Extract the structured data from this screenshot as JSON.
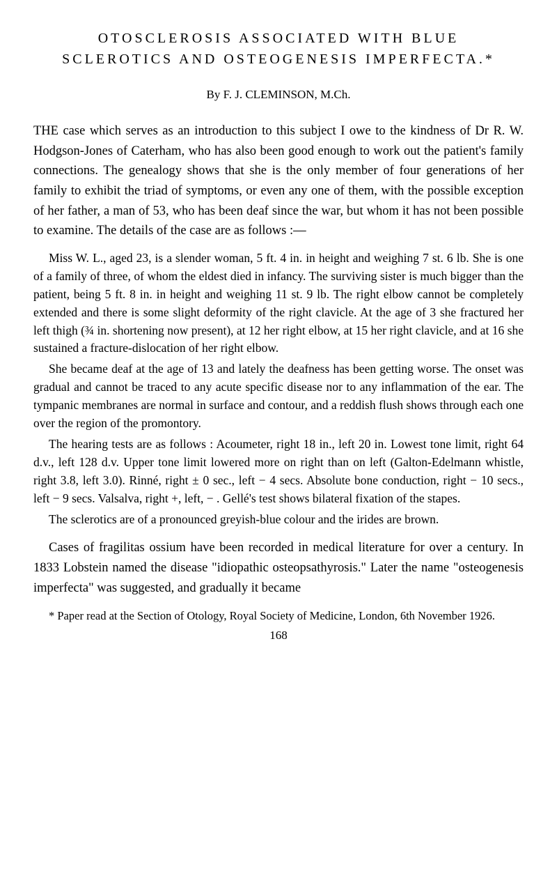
{
  "title_line1": "OTOSCLEROSIS ASSOCIATED WITH BLUE",
  "title_line2": "SCLEROTICS AND OSTEOGENESIS IMPERFECTA.*",
  "byline": "By F. J. CLEMINSON, M.Ch.",
  "intro": "THE case which serves as an introduction to this subject I owe to the kindness of Dr R. W. Hodgson-Jones of Caterham, who has also been good enough to work out the patient's family connections. The genealogy shows that she is the only member of four generations of her family to exhibit the triad of symptoms, or even any one of them, with the possible exception of her father, a man of 53, who has been deaf since the war, but whom it has not been possible to examine. The details of the case are as follows :—",
  "case": [
    "Miss W. L., aged 23, is a slender woman, 5 ft. 4 in. in height and weighing 7 st. 6 lb. She is one of a family of three, of whom the eldest died in infancy. The surviving sister is much bigger than the patient, being 5 ft. 8 in. in height and weighing 11 st. 9 lb. The right elbow cannot be completely extended and there is some slight deformity of the right clavicle. At the age of 3 she fractured her left thigh (¾ in. shortening now present), at 12 her right elbow, at 15 her right clavicle, and at 16 she sustained a fracture-dislocation of her right elbow.",
    "She became deaf at the age of 13 and lately the deafness has been getting worse. The onset was gradual and cannot be traced to any acute specific disease nor to any inflammation of the ear. The tympanic membranes are normal in surface and contour, and a reddish flush shows through each one over the region of the promontory.",
    "The hearing tests are as follows : Acoumeter, right 18 in., left 20 in. Lowest tone limit, right 64 d.v., left 128 d.v. Upper tone limit lowered more on right than on left (Galton-Edelmann whistle, right 3.8, left 3.0). Rinné, right ± 0 sec., left − 4 secs. Absolute bone conduction, right − 10 secs., left − 9 secs. Valsalva, right +, left, − . Gellé's test shows bilateral fixation of the stapes.",
    "The sclerotics are of a pronounced greyish-blue colour and the irides are brown."
  ],
  "closing": "Cases of fragilitas ossium have been recorded in medical literature for over a century. In 1833 Lobstein named the disease \"idiopathic osteopsathyrosis.\" Later the name \"osteogenesis imperfecta\" was suggested, and gradually it became",
  "footnote": "* Paper read at the Section of Otology, Royal Society of Medicine, London, 6th November 1926.",
  "page_number": "168"
}
